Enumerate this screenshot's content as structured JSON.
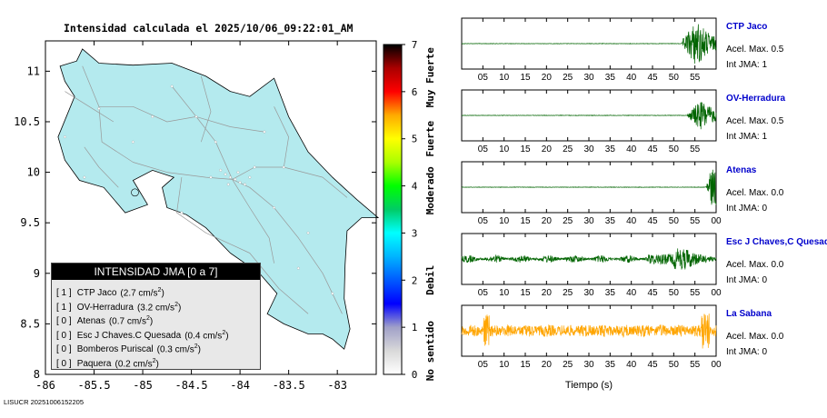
{
  "title": "Intensidad calculada el 2025/10/06_09:22:01_AM",
  "footer": "LISUCR 20251006152205",
  "map": {
    "x_ticks": [
      -86,
      -85.5,
      -85,
      -84.5,
      -84,
      -83.5,
      -83
    ],
    "x_tick_labels": [
      "-86",
      "-85.5",
      "-85",
      "-84.5",
      "-84",
      "-83.5",
      "-83"
    ],
    "y_ticks": [
      8,
      8.5,
      9,
      9.5,
      10,
      10.5,
      11
    ],
    "y_tick_labels": [
      "8",
      "8.5",
      "9",
      "9.5",
      "10",
      "10.5",
      "11"
    ],
    "xlim": [
      -86,
      -82.6
    ],
    "ylim": [
      8,
      11.3
    ],
    "land_color": "#b4eaee"
  },
  "legend": {
    "title": "INTENSIDAD JMA [0 a 7]",
    "items": [
      {
        "int": "[ 1 ]",
        "station": "CTP Jaco",
        "accel": "(2.7 cm/s",
        "sup": "2",
        "close": ")"
      },
      {
        "int": "[ 1 ]",
        "station": "OV-Herradura",
        "accel": "(3.2 cm/s",
        "sup": "2",
        "close": ")"
      },
      {
        "int": "[ 0 ]",
        "station": "Atenas",
        "accel": "(0.7 cm/s",
        "sup": "2",
        "close": ")"
      },
      {
        "int": "[ 0 ]",
        "station": "Esc J Chaves.C Quesada",
        "accel": "(0.4 cm/s",
        "sup": "2",
        "close": ")"
      },
      {
        "int": "[ 0 ]",
        "station": "Bomberos Puriscal",
        "accel": "(0.3 cm/s",
        "sup": "2",
        "close": ")"
      },
      {
        "int": "[ 0 ]",
        "station": "Paquera",
        "accel": "(0.2 cm/s",
        "sup": "2",
        "close": ")"
      }
    ]
  },
  "colorbar": {
    "ticks": [
      "0",
      "1",
      "2",
      "3",
      "4",
      "5",
      "6",
      "7"
    ],
    "labels": [
      {
        "text": "No sentido",
        "value": 0.5
      },
      {
        "text": "Debil",
        "value": 2.0
      },
      {
        "text": "Moderado",
        "value": 3.9
      },
      {
        "text": "Fuerte",
        "value": 5.0
      },
      {
        "text": "Muy Fuerte",
        "value": 6.3
      }
    ],
    "colors": [
      {
        "v": 0,
        "c": "#ffffff"
      },
      {
        "v": 0.5,
        "c": "#d9d9d9"
      },
      {
        "v": 1,
        "c": "#a0a0c8"
      },
      {
        "v": 1.5,
        "c": "#0000ff"
      },
      {
        "v": 2.5,
        "c": "#00b4ff"
      },
      {
        "v": 3,
        "c": "#00ffff"
      },
      {
        "v": 3.5,
        "c": "#00cc66"
      },
      {
        "v": 4,
        "c": "#00ff00"
      },
      {
        "v": 4.5,
        "c": "#aaff00"
      },
      {
        "v": 5,
        "c": "#ffff00"
      },
      {
        "v": 5.5,
        "c": "#ffaa00"
      },
      {
        "v": 6,
        "c": "#ff0000"
      },
      {
        "v": 6.5,
        "c": "#aa0000"
      },
      {
        "v": 7,
        "c": "#000000"
      }
    ]
  },
  "seismograms": {
    "xlabel": "Tiempo (s)",
    "x_tick_labels": [
      "05",
      "10",
      "15",
      "20",
      "25",
      "30",
      "35",
      "40",
      "45",
      "50",
      "55",
      "00"
    ],
    "traces": [
      {
        "station": "CTP Jaco",
        "accel": "Acel. Max. 0.5",
        "int": "Int JMA: 1",
        "color": "#006400",
        "duration": 60,
        "end_label": "55"
      },
      {
        "station": "OV-Herradura",
        "accel": "Acel. Max. 0.5",
        "int": "Int JMA: 1",
        "color": "#006400",
        "duration": 60,
        "end_label": "55"
      },
      {
        "station": "Atenas",
        "accel": "Acel. Max. 0.0",
        "int": "Int JMA: 0",
        "color": "#006400",
        "duration": 60,
        "end_label": "00"
      },
      {
        "station": "Esc J Chaves,C Quesada",
        "accel": "Acel. Max. 0.0",
        "int": "Int JMA: 0",
        "color": "#006400",
        "duration": 60,
        "end_label": "00"
      },
      {
        "station": "La Sabana",
        "accel": "Acel. Max. 0.0",
        "int": "Int JMA: 0",
        "color": "#ffa500",
        "duration": 60,
        "end_label": "00"
      }
    ]
  }
}
